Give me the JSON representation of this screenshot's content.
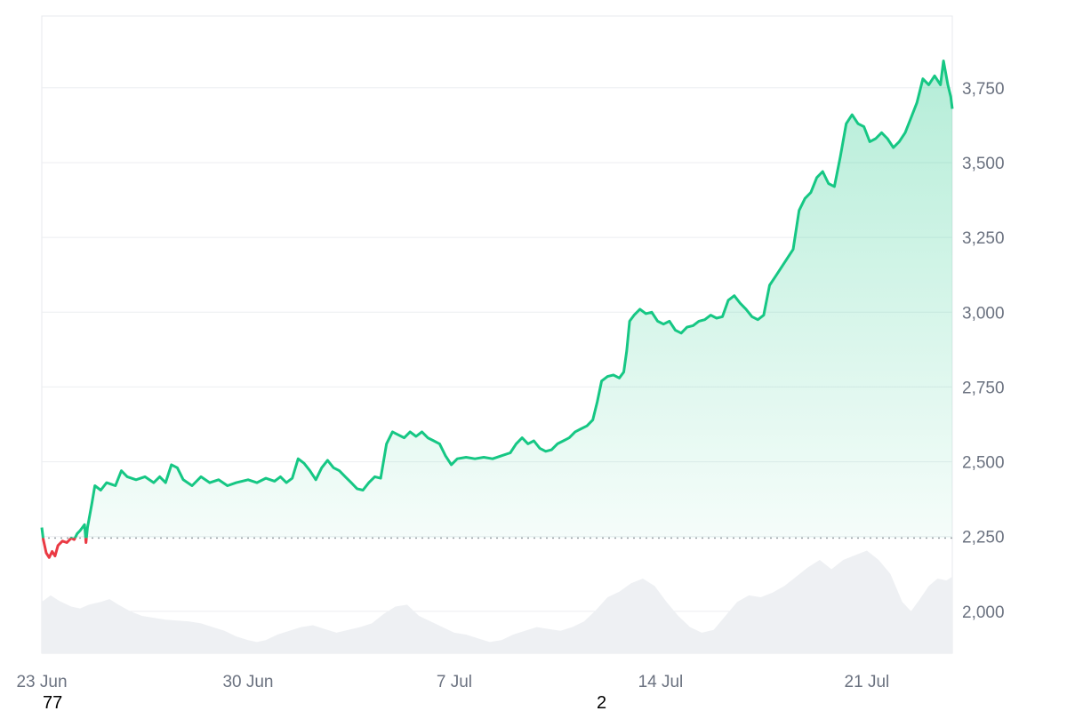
{
  "chart_data": {
    "type": "area",
    "title": "",
    "xlabel": "",
    "ylabel": "",
    "x_ticks": [
      "23 Jun",
      "30 Jun",
      "7 Jul",
      "14 Jul",
      "21 Jul"
    ],
    "x_range_days": [
      0,
      30.9
    ],
    "y_ticks": [
      2000,
      2250,
      2500,
      2750,
      3000,
      3250,
      3500,
      3750
    ],
    "y_tick_labels": [
      "2,000",
      "2,250",
      "2,500",
      "2,750",
      "3,000",
      "3,250",
      "3,500",
      "3,750"
    ],
    "ylim": [
      1860,
      3990
    ],
    "baseline": 2245,
    "grid": true,
    "legend": "none",
    "colors": {
      "up": "#16c784",
      "down": "#ea3943",
      "volume": "#eef0f3",
      "grid": "#eceef1",
      "tick_text": "#6b7280"
    },
    "series": [
      {
        "values": [
          [
            0.0,
            2280
          ],
          [
            0.05,
            2240
          ],
          [
            0.15,
            2195
          ],
          [
            0.25,
            2180
          ],
          [
            0.35,
            2200
          ],
          [
            0.45,
            2185
          ],
          [
            0.55,
            2220
          ],
          [
            0.7,
            2235
          ],
          [
            0.85,
            2230
          ],
          [
            1.0,
            2245
          ],
          [
            1.1,
            2240
          ],
          [
            1.2,
            2260
          ],
          [
            1.3,
            2270
          ],
          [
            1.45,
            2290
          ],
          [
            1.5,
            2230
          ],
          [
            1.55,
            2280
          ],
          [
            1.7,
            2360
          ],
          [
            1.8,
            2420
          ],
          [
            2.0,
            2405
          ],
          [
            2.2,
            2430
          ],
          [
            2.5,
            2420
          ],
          [
            2.7,
            2470
          ],
          [
            2.9,
            2450
          ],
          [
            3.2,
            2440
          ],
          [
            3.5,
            2450
          ],
          [
            3.8,
            2430
          ],
          [
            4.0,
            2450
          ],
          [
            4.2,
            2430
          ],
          [
            4.4,
            2490
          ],
          [
            4.6,
            2480
          ],
          [
            4.8,
            2440
          ],
          [
            5.1,
            2420
          ],
          [
            5.4,
            2450
          ],
          [
            5.7,
            2430
          ],
          [
            6.0,
            2440
          ],
          [
            6.3,
            2420
          ],
          [
            6.6,
            2430
          ],
          [
            7.0,
            2440
          ],
          [
            7.3,
            2430
          ],
          [
            7.6,
            2445
          ],
          [
            7.9,
            2435
          ],
          [
            8.1,
            2450
          ],
          [
            8.3,
            2430
          ],
          [
            8.5,
            2445
          ],
          [
            8.7,
            2510
          ],
          [
            8.9,
            2495
          ],
          [
            9.1,
            2470
          ],
          [
            9.3,
            2440
          ],
          [
            9.5,
            2480
          ],
          [
            9.7,
            2505
          ],
          [
            9.9,
            2480
          ],
          [
            10.1,
            2470
          ],
          [
            10.3,
            2450
          ],
          [
            10.5,
            2430
          ],
          [
            10.7,
            2410
          ],
          [
            10.9,
            2405
          ],
          [
            11.1,
            2430
          ],
          [
            11.3,
            2450
          ],
          [
            11.5,
            2445
          ],
          [
            11.7,
            2560
          ],
          [
            11.9,
            2600
          ],
          [
            12.1,
            2590
          ],
          [
            12.3,
            2580
          ],
          [
            12.5,
            2600
          ],
          [
            12.7,
            2585
          ],
          [
            12.9,
            2600
          ],
          [
            13.1,
            2580
          ],
          [
            13.3,
            2570
          ],
          [
            13.5,
            2560
          ],
          [
            13.7,
            2520
          ],
          [
            13.9,
            2490
          ],
          [
            14.1,
            2510
          ],
          [
            14.4,
            2515
          ],
          [
            14.7,
            2510
          ],
          [
            15.0,
            2515
          ],
          [
            15.3,
            2510
          ],
          [
            15.6,
            2520
          ],
          [
            15.9,
            2530
          ],
          [
            16.1,
            2560
          ],
          [
            16.3,
            2580
          ],
          [
            16.5,
            2560
          ],
          [
            16.7,
            2570
          ],
          [
            16.9,
            2545
          ],
          [
            17.1,
            2535
          ],
          [
            17.3,
            2540
          ],
          [
            17.5,
            2560
          ],
          [
            17.7,
            2570
          ],
          [
            17.9,
            2580
          ],
          [
            18.1,
            2600
          ],
          [
            18.3,
            2610
          ],
          [
            18.5,
            2620
          ],
          [
            18.7,
            2640
          ],
          [
            18.85,
            2700
          ],
          [
            19.0,
            2770
          ],
          [
            19.2,
            2785
          ],
          [
            19.4,
            2790
          ],
          [
            19.6,
            2780
          ],
          [
            19.75,
            2800
          ],
          [
            19.85,
            2870
          ],
          [
            19.95,
            2970
          ],
          [
            20.1,
            2990
          ],
          [
            20.3,
            3010
          ],
          [
            20.5,
            2995
          ],
          [
            20.7,
            3000
          ],
          [
            20.9,
            2970
          ],
          [
            21.1,
            2960
          ],
          [
            21.3,
            2970
          ],
          [
            21.5,
            2940
          ],
          [
            21.7,
            2930
          ],
          [
            21.9,
            2950
          ],
          [
            22.1,
            2955
          ],
          [
            22.3,
            2970
          ],
          [
            22.5,
            2975
          ],
          [
            22.7,
            2990
          ],
          [
            22.9,
            2980
          ],
          [
            23.1,
            2985
          ],
          [
            23.3,
            3040
          ],
          [
            23.5,
            3055
          ],
          [
            23.7,
            3030
          ],
          [
            23.9,
            3010
          ],
          [
            24.1,
            2985
          ],
          [
            24.3,
            2975
          ],
          [
            24.5,
            2990
          ],
          [
            24.7,
            3090
          ],
          [
            24.9,
            3120
          ],
          [
            25.1,
            3150
          ],
          [
            25.3,
            3180
          ],
          [
            25.5,
            3210
          ],
          [
            25.7,
            3340
          ],
          [
            25.9,
            3380
          ],
          [
            26.1,
            3400
          ],
          [
            26.3,
            3450
          ],
          [
            26.5,
            3470
          ],
          [
            26.7,
            3430
          ],
          [
            26.9,
            3420
          ],
          [
            27.1,
            3520
          ],
          [
            27.3,
            3630
          ],
          [
            27.5,
            3660
          ],
          [
            27.7,
            3630
          ],
          [
            27.9,
            3620
          ],
          [
            28.1,
            3570
          ],
          [
            28.3,
            3580
          ],
          [
            28.5,
            3600
          ],
          [
            28.7,
            3580
          ],
          [
            28.9,
            3550
          ],
          [
            29.1,
            3570
          ],
          [
            29.3,
            3600
          ],
          [
            29.5,
            3650
          ],
          [
            29.7,
            3700
          ],
          [
            29.9,
            3780
          ],
          [
            30.1,
            3760
          ],
          [
            30.3,
            3790
          ],
          [
            30.5,
            3760
          ],
          [
            30.6,
            3840
          ],
          [
            30.75,
            3760
          ],
          [
            30.85,
            3720
          ],
          [
            30.9,
            3680
          ]
        ]
      }
    ],
    "volume": [
      [
        0.0,
        0.55
      ],
      [
        0.3,
        0.62
      ],
      [
        0.6,
        0.56
      ],
      [
        1.0,
        0.5
      ],
      [
        1.3,
        0.48
      ],
      [
        1.6,
        0.52
      ],
      [
        2.0,
        0.55
      ],
      [
        2.3,
        0.58
      ],
      [
        2.6,
        0.52
      ],
      [
        3.0,
        0.45
      ],
      [
        3.4,
        0.4
      ],
      [
        3.8,
        0.38
      ],
      [
        4.2,
        0.36
      ],
      [
        4.6,
        0.35
      ],
      [
        5.0,
        0.34
      ],
      [
        5.4,
        0.32
      ],
      [
        5.8,
        0.28
      ],
      [
        6.2,
        0.24
      ],
      [
        6.6,
        0.18
      ],
      [
        7.0,
        0.14
      ],
      [
        7.3,
        0.12
      ],
      [
        7.6,
        0.14
      ],
      [
        8.0,
        0.2
      ],
      [
        8.4,
        0.24
      ],
      [
        8.8,
        0.28
      ],
      [
        9.2,
        0.3
      ],
      [
        9.6,
        0.26
      ],
      [
        10.0,
        0.22
      ],
      [
        10.4,
        0.25
      ],
      [
        10.8,
        0.28
      ],
      [
        11.2,
        0.32
      ],
      [
        11.6,
        0.42
      ],
      [
        12.0,
        0.5
      ],
      [
        12.4,
        0.52
      ],
      [
        12.8,
        0.4
      ],
      [
        13.2,
        0.34
      ],
      [
        13.6,
        0.28
      ],
      [
        14.0,
        0.22
      ],
      [
        14.4,
        0.2
      ],
      [
        14.8,
        0.16
      ],
      [
        15.2,
        0.12
      ],
      [
        15.6,
        0.14
      ],
      [
        16.0,
        0.2
      ],
      [
        16.4,
        0.24
      ],
      [
        16.8,
        0.28
      ],
      [
        17.2,
        0.26
      ],
      [
        17.6,
        0.24
      ],
      [
        18.0,
        0.28
      ],
      [
        18.4,
        0.34
      ],
      [
        18.8,
        0.46
      ],
      [
        19.2,
        0.6
      ],
      [
        19.6,
        0.66
      ],
      [
        20.0,
        0.75
      ],
      [
        20.4,
        0.8
      ],
      [
        20.8,
        0.72
      ],
      [
        21.2,
        0.55
      ],
      [
        21.6,
        0.4
      ],
      [
        22.0,
        0.28
      ],
      [
        22.4,
        0.22
      ],
      [
        22.8,
        0.25
      ],
      [
        23.2,
        0.4
      ],
      [
        23.6,
        0.55
      ],
      [
        24.0,
        0.62
      ],
      [
        24.4,
        0.6
      ],
      [
        24.8,
        0.65
      ],
      [
        25.2,
        0.72
      ],
      [
        25.6,
        0.82
      ],
      [
        26.0,
        0.92
      ],
      [
        26.4,
        1.0
      ],
      [
        26.8,
        0.9
      ],
      [
        27.2,
        1.0
      ],
      [
        27.6,
        1.05
      ],
      [
        28.0,
        1.1
      ],
      [
        28.4,
        1.0
      ],
      [
        28.8,
        0.85
      ],
      [
        29.2,
        0.55
      ],
      [
        29.5,
        0.45
      ],
      [
        29.8,
        0.58
      ],
      [
        30.1,
        0.72
      ],
      [
        30.4,
        0.8
      ],
      [
        30.7,
        0.78
      ],
      [
        30.9,
        0.82
      ]
    ]
  },
  "overlay_labels": [
    "77",
    "2"
  ]
}
